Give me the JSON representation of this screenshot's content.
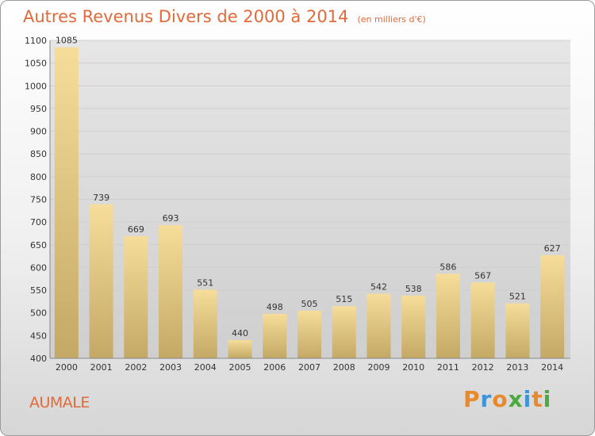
{
  "chart_data": {
    "type": "bar",
    "title": "Autres Revenus Divers de 2000 à 2014",
    "subtitle": "(en milliers d'€)",
    "xlabel": "",
    "ylabel": "",
    "categories": [
      "2000",
      "2001",
      "2002",
      "2003",
      "2004",
      "2005",
      "2006",
      "2007",
      "2008",
      "2009",
      "2010",
      "2011",
      "2012",
      "2013",
      "2014"
    ],
    "values": [
      1085,
      739,
      669,
      693,
      551,
      440,
      498,
      505,
      515,
      542,
      538,
      586,
      567,
      521,
      627
    ],
    "ylim": [
      400,
      1100
    ],
    "yticks": [
      400,
      450,
      500,
      550,
      600,
      650,
      700,
      750,
      800,
      850,
      900,
      950,
      1000,
      1050,
      1100
    ],
    "grid": "horizontal",
    "legend": "none",
    "colors": {
      "bar_top": "#f6dd9a",
      "bar_bottom": "#c4a866",
      "grid": "#cfcfcf"
    }
  },
  "location": "AUMALE",
  "brand": {
    "name": "Proxiti",
    "letters": [
      {
        "ch": "P",
        "color": "#e8892e"
      },
      {
        "ch": "r",
        "color": "#3f93d8"
      },
      {
        "ch": "o",
        "color": "#e8892e"
      },
      {
        "ch": "x",
        "color": "#4aa93f"
      },
      {
        "ch": "i",
        "color": "#3f93d8"
      },
      {
        "ch": "t",
        "color": "#e8892e"
      },
      {
        "ch": "i",
        "color": "#4aa93f"
      }
    ]
  }
}
